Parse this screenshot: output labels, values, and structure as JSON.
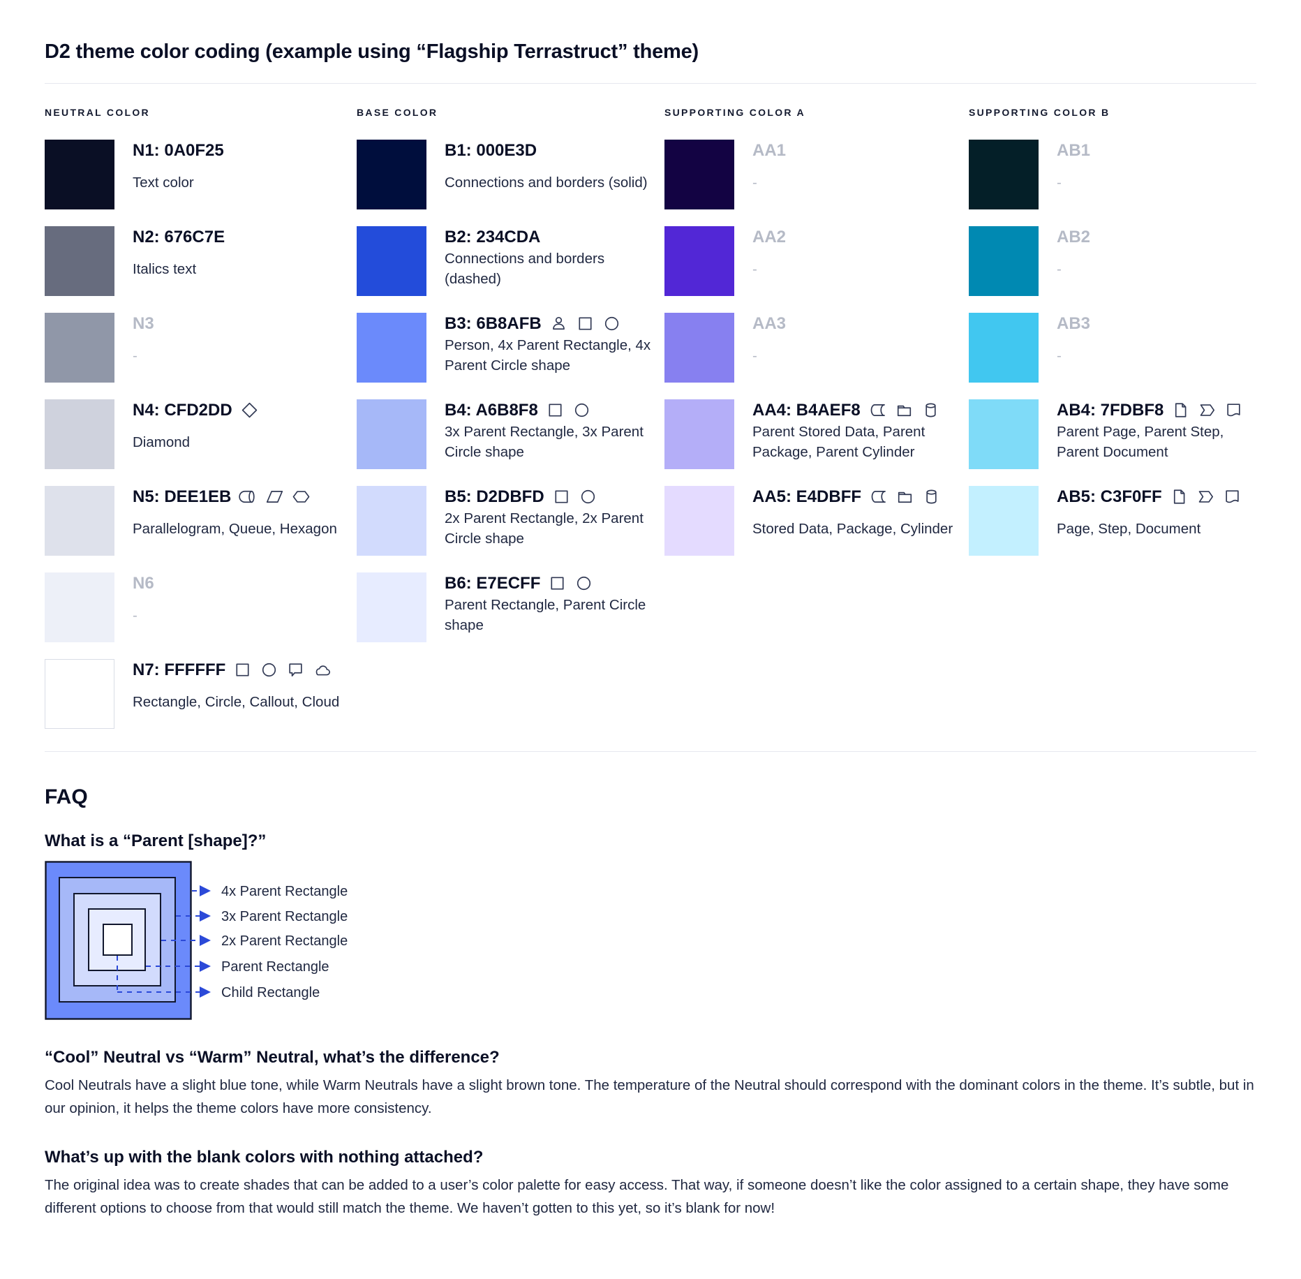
{
  "colors": {
    "text": "#0A0F25",
    "muted_label": "#B5BAC6",
    "divider": "#E6E8EF",
    "arrow_blue": "#2B49D8",
    "icon_stroke": "#323A55"
  },
  "title": "D2 theme color coding (example using “Flagship Terrastruct” theme)",
  "palette": {
    "columns": [
      {
        "header": "NEUTRAL COLOR",
        "items": [
          {
            "label": "N1: 0A0F25",
            "hex": "#0A0F25",
            "description": "Text color",
            "icons": [],
            "muted": false,
            "bordered": false
          },
          {
            "label": "N2: 676C7E",
            "hex": "#676C7E",
            "description": "Italics text",
            "icons": [],
            "muted": false,
            "bordered": false
          },
          {
            "label": "N3",
            "hex": "#9097A8",
            "description": "-",
            "icons": [],
            "muted": true,
            "bordered": false
          },
          {
            "label": "N4: CFD2DD",
            "hex": "#CFD2DD",
            "description": "Diamond",
            "icons": [
              "diamond"
            ],
            "muted": false,
            "bordered": false
          },
          {
            "label": "N5: DEE1EB",
            "hex": "#DEE1EB",
            "description": "Parallelogram, Queue, Hexagon",
            "icons": [
              "queue",
              "parallelogram",
              "hexagon"
            ],
            "muted": false,
            "bordered": false
          },
          {
            "label": "N6",
            "hex": "#EDF0F8",
            "description": "-",
            "icons": [],
            "muted": true,
            "bordered": false
          },
          {
            "label": "N7: FFFFFF",
            "hex": "#FFFFFF",
            "description": "Rectangle, Circle, Callout, Cloud",
            "icons": [
              "rectangle",
              "circle",
              "callout",
              "cloud"
            ],
            "muted": false,
            "bordered": true
          }
        ]
      },
      {
        "header": "BASE COLOR",
        "items": [
          {
            "label": "B1: 000E3D",
            "hex": "#000E3D",
            "description": "Connections and borders (solid)",
            "icons": [],
            "muted": false,
            "bordered": false
          },
          {
            "label": "B2: 234CDA",
            "hex": "#234CDA",
            "description": "Connections and borders (dashed)",
            "icons": [],
            "muted": false,
            "bordered": false
          },
          {
            "label": "B3: 6B8AFB",
            "hex": "#6B8AFB",
            "description": "Person, 4x Parent Rectangle, 4x Parent Circle shape",
            "icons": [
              "person",
              "rectangle",
              "circle"
            ],
            "muted": false,
            "bordered": false
          },
          {
            "label": "B4: A6B8F8",
            "hex": "#A6B8F8",
            "description": "3x Parent Rectangle, 3x Parent Circle shape",
            "icons": [
              "rectangle",
              "circle"
            ],
            "muted": false,
            "bordered": false
          },
          {
            "label": "B5: D2DBFD",
            "hex": "#D2DBFD",
            "description": "2x Parent Rectangle, 2x Parent Circle shape",
            "icons": [
              "rectangle",
              "circle"
            ],
            "muted": false,
            "bordered": false
          },
          {
            "label": "B6: E7ECFF",
            "hex": "#E7ECFF",
            "description": "Parent Rectangle, Parent Circle shape",
            "icons": [
              "rectangle",
              "circle"
            ],
            "muted": false,
            "bordered": false
          }
        ]
      },
      {
        "header": "SUPPORTING COLOR A",
        "items": [
          {
            "label": "AA1",
            "hex": "#130343",
            "description": "-",
            "icons": [],
            "muted": true,
            "bordered": false
          },
          {
            "label": "AA2",
            "hex": "#5227D6",
            "description": "-",
            "icons": [],
            "muted": true,
            "bordered": false
          },
          {
            "label": "AA3",
            "hex": "#8780F0",
            "description": "-",
            "icons": [],
            "muted": true,
            "bordered": false
          },
          {
            "label": "AA4: B4AEF8",
            "hex": "#B4AEF8",
            "description": "Parent Stored Data, Parent Package,  Parent Cylinder",
            "icons": [
              "stored-data",
              "package",
              "cylinder"
            ],
            "muted": false,
            "bordered": false
          },
          {
            "label": "AA5: E4DBFF",
            "hex": "#E4DBFF",
            "description": "Stored Data, Package, Cylinder",
            "icons": [
              "stored-data",
              "package",
              "cylinder"
            ],
            "muted": false,
            "bordered": false
          }
        ]
      },
      {
        "header": "SUPPORTING COLOR B",
        "items": [
          {
            "label": "AB1",
            "hex": "#041F28",
            "description": "-",
            "icons": [],
            "muted": true,
            "bordered": false
          },
          {
            "label": "AB2",
            "hex": "#0089B2",
            "description": "-",
            "icons": [],
            "muted": true,
            "bordered": false
          },
          {
            "label": "AB3",
            "hex": "#41C7F0",
            "description": "-",
            "icons": [],
            "muted": true,
            "bordered": false
          },
          {
            "label": "AB4: 7FDBF8",
            "hex": "#7FDBF8",
            "description": "Parent Page, Parent Step, Parent Document",
            "icons": [
              "page",
              "step",
              "document"
            ],
            "muted": false,
            "bordered": false
          },
          {
            "label": "AB5: C3F0FF",
            "hex": "#C3F0FF",
            "description": "Page, Step, Document",
            "icons": [
              "page",
              "step",
              "document"
            ],
            "muted": false,
            "bordered": false
          }
        ]
      }
    ]
  },
  "faq": {
    "heading": "FAQ",
    "q1": "What is a “Parent [shape]?”",
    "diagram": {
      "labels": [
        "4x Parent Rectangle",
        "3x Parent Rectangle",
        "2x Parent Rectangle",
        "Parent Rectangle",
        "Child Rectangle"
      ],
      "colors": [
        "#6B8AFB",
        "#A6B8F8",
        "#D2DBFD",
        "#E7ECFF",
        "#FFFFFF"
      ]
    },
    "q2": "“Cool” Neutral vs “Warm” Neutral, what’s the difference?",
    "a2": "Cool Neutrals have a slight blue tone, while Warm Neutrals have a slight brown tone. The temperature of the Neutral should correspond with the dominant colors in the theme. It’s subtle, but in our opinion, it helps the theme colors have more consistency.",
    "q3": "What’s up with the blank colors with nothing attached?",
    "a3": "The original idea was to create shades that can be added to a user’s color palette for easy access. That way, if someone doesn’t like the color assigned to a certain shape, they have some different options to choose from that would still match the theme. We haven’t gotten to this yet, so it’s blank for now!"
  }
}
